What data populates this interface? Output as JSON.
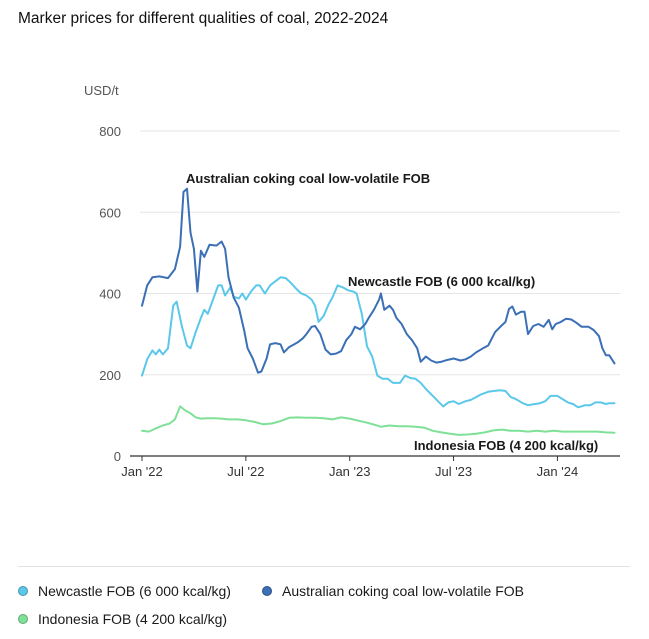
{
  "title": "Marker prices for different qualities of coal, 2022-2024",
  "colors": {
    "newcastle": "#5bc8ea",
    "australian": "#3b6fb6",
    "indonesia": "#7fe098",
    "grid": "#e5e5e5",
    "axis": "#333333",
    "tick_text": "#555555"
  },
  "chart_data": {
    "type": "line",
    "ylabel": "USD/t",
    "ylim": [
      0,
      800
    ],
    "y_ticks": [
      0,
      200,
      400,
      600,
      800
    ],
    "y_tick_labels": [
      "0",
      "200",
      "400",
      "600",
      "800"
    ],
    "x_ticks": [
      0,
      6,
      12,
      18,
      24
    ],
    "x_tick_labels": [
      "Jan '22",
      "Jul '22",
      "Jan '23",
      "Jul '23",
      "Jan '24"
    ],
    "x_unit": "months since Jan 2022",
    "xlim": [
      0,
      27.5
    ],
    "grid": true,
    "legend_position": "bottom",
    "series": [
      {
        "name": "Australian coking coal low-volatile FOB",
        "key": "australian",
        "label": "Australian coking coal low-volatile FOB",
        "points": [
          [
            0.0,
            370
          ],
          [
            0.3,
            420
          ],
          [
            0.6,
            440
          ],
          [
            1.0,
            442
          ],
          [
            1.5,
            438
          ],
          [
            1.9,
            460
          ],
          [
            2.2,
            515
          ],
          [
            2.4,
            650
          ],
          [
            2.6,
            658
          ],
          [
            2.8,
            550
          ],
          [
            3.0,
            510
          ],
          [
            3.2,
            405
          ],
          [
            3.4,
            505
          ],
          [
            3.6,
            490
          ],
          [
            3.9,
            520
          ],
          [
            4.3,
            518
          ],
          [
            4.6,
            528
          ],
          [
            4.8,
            510
          ],
          [
            5.0,
            440
          ],
          [
            5.3,
            390
          ],
          [
            5.6,
            365
          ],
          [
            5.9,
            310
          ],
          [
            6.1,
            265
          ],
          [
            6.4,
            240
          ],
          [
            6.7,
            205
          ],
          [
            6.9,
            208
          ],
          [
            7.2,
            240
          ],
          [
            7.4,
            275
          ],
          [
            7.7,
            278
          ],
          [
            8.0,
            275
          ],
          [
            8.2,
            255
          ],
          [
            8.5,
            268
          ],
          [
            8.8,
            275
          ],
          [
            9.0,
            280
          ],
          [
            9.3,
            290
          ],
          [
            9.5,
            300
          ],
          [
            9.8,
            318
          ],
          [
            10.0,
            320
          ],
          [
            10.3,
            300
          ],
          [
            10.6,
            262
          ],
          [
            10.9,
            250
          ],
          [
            11.2,
            252
          ],
          [
            11.5,
            258
          ],
          [
            11.8,
            285
          ],
          [
            12.1,
            300
          ],
          [
            12.3,
            318
          ],
          [
            12.6,
            312
          ],
          [
            12.9,
            325
          ],
          [
            13.1,
            340
          ],
          [
            13.4,
            360
          ],
          [
            13.7,
            385
          ],
          [
            13.8,
            400
          ],
          [
            14.0,
            360
          ],
          [
            14.3,
            370
          ],
          [
            14.5,
            360
          ],
          [
            14.7,
            340
          ],
          [
            15.0,
            325
          ],
          [
            15.3,
            300
          ],
          [
            15.6,
            285
          ],
          [
            15.9,
            265
          ],
          [
            16.1,
            232
          ],
          [
            16.4,
            245
          ],
          [
            16.7,
            235
          ],
          [
            17.0,
            230
          ],
          [
            17.3,
            232
          ],
          [
            17.6,
            236
          ],
          [
            18.0,
            240
          ],
          [
            18.4,
            235
          ],
          [
            18.7,
            238
          ],
          [
            19.0,
            245
          ],
          [
            19.3,
            255
          ],
          [
            19.7,
            265
          ],
          [
            20.0,
            272
          ],
          [
            20.4,
            305
          ],
          [
            20.7,
            318
          ],
          [
            21.0,
            330
          ],
          [
            21.2,
            362
          ],
          [
            21.4,
            368
          ],
          [
            21.6,
            348
          ],
          [
            21.9,
            355
          ],
          [
            22.1,
            355
          ],
          [
            22.3,
            300
          ],
          [
            22.6,
            320
          ],
          [
            22.9,
            325
          ],
          [
            23.2,
            318
          ],
          [
            23.5,
            335
          ],
          [
            23.7,
            312
          ],
          [
            23.9,
            325
          ],
          [
            24.2,
            330
          ],
          [
            24.5,
            338
          ],
          [
            24.8,
            336
          ],
          [
            25.1,
            328
          ],
          [
            25.4,
            318
          ],
          [
            25.8,
            318
          ],
          [
            26.1,
            310
          ],
          [
            26.4,
            295
          ],
          [
            26.6,
            265
          ],
          [
            26.8,
            248
          ],
          [
            27.0,
            248
          ],
          [
            27.3,
            228
          ]
        ]
      },
      {
        "name": "Newcastle FOB (6 000 kcal/kg)",
        "key": "newcastle",
        "label": "Newcastle FOB (6 000 kcal/kg)",
        "points": [
          [
            0.0,
            198
          ],
          [
            0.3,
            238
          ],
          [
            0.6,
            260
          ],
          [
            0.8,
            250
          ],
          [
            1.0,
            262
          ],
          [
            1.2,
            250
          ],
          [
            1.5,
            265
          ],
          [
            1.8,
            370
          ],
          [
            2.0,
            380
          ],
          [
            2.3,
            320
          ],
          [
            2.6,
            272
          ],
          [
            2.8,
            265
          ],
          [
            3.1,
            305
          ],
          [
            3.4,
            340
          ],
          [
            3.6,
            360
          ],
          [
            3.8,
            350
          ],
          [
            4.1,
            385
          ],
          [
            4.4,
            420
          ],
          [
            4.6,
            420
          ],
          [
            4.8,
            395
          ],
          [
            5.1,
            415
          ],
          [
            5.3,
            392
          ],
          [
            5.6,
            388
          ],
          [
            5.8,
            400
          ],
          [
            6.0,
            385
          ],
          [
            6.3,
            405
          ],
          [
            6.6,
            420
          ],
          [
            6.8,
            420
          ],
          [
            7.1,
            400
          ],
          [
            7.4,
            420
          ],
          [
            7.7,
            430
          ],
          [
            8.0,
            440
          ],
          [
            8.3,
            438
          ],
          [
            8.6,
            426
          ],
          [
            8.9,
            412
          ],
          [
            9.2,
            400
          ],
          [
            9.5,
            395
          ],
          [
            9.8,
            385
          ],
          [
            10.0,
            370
          ],
          [
            10.2,
            330
          ],
          [
            10.5,
            345
          ],
          [
            10.8,
            375
          ],
          [
            11.0,
            390
          ],
          [
            11.3,
            420
          ],
          [
            11.6,
            415
          ],
          [
            11.9,
            408
          ],
          [
            12.2,
            405
          ],
          [
            12.4,
            400
          ],
          [
            12.7,
            350
          ],
          [
            13.0,
            270
          ],
          [
            13.3,
            245
          ],
          [
            13.6,
            198
          ],
          [
            13.9,
            190
          ],
          [
            14.2,
            190
          ],
          [
            14.5,
            180
          ],
          [
            14.9,
            180
          ],
          [
            15.2,
            198
          ],
          [
            15.5,
            192
          ],
          [
            15.8,
            190
          ],
          [
            16.1,
            180
          ],
          [
            16.4,
            165
          ],
          [
            16.8,
            148
          ],
          [
            17.1,
            135
          ],
          [
            17.4,
            122
          ],
          [
            17.7,
            132
          ],
          [
            18.0,
            135
          ],
          [
            18.3,
            128
          ],
          [
            18.7,
            135
          ],
          [
            19.0,
            138
          ],
          [
            19.3,
            145
          ],
          [
            19.6,
            152
          ],
          [
            20.0,
            158
          ],
          [
            20.3,
            160
          ],
          [
            20.7,
            162
          ],
          [
            21.0,
            160
          ],
          [
            21.3,
            145
          ],
          [
            21.6,
            140
          ],
          [
            22.0,
            130
          ],
          [
            22.3,
            125
          ],
          [
            22.7,
            128
          ],
          [
            23.0,
            130
          ],
          [
            23.3,
            135
          ],
          [
            23.6,
            148
          ],
          [
            24.0,
            148
          ],
          [
            24.3,
            140
          ],
          [
            24.6,
            132
          ],
          [
            24.9,
            128
          ],
          [
            25.2,
            120
          ],
          [
            25.6,
            125
          ],
          [
            25.9,
            125
          ],
          [
            26.2,
            132
          ],
          [
            26.5,
            132
          ],
          [
            26.8,
            128
          ],
          [
            27.0,
            130
          ],
          [
            27.3,
            130
          ]
        ]
      },
      {
        "name": "Indonesia FOB (4 200 kcal/kg)",
        "key": "indonesia",
        "label": "Indonesia FOB (4 200 kcal/kg)",
        "points": [
          [
            0.0,
            62
          ],
          [
            0.4,
            60
          ],
          [
            0.8,
            68
          ],
          [
            1.2,
            75
          ],
          [
            1.6,
            80
          ],
          [
            1.9,
            90
          ],
          [
            2.2,
            122
          ],
          [
            2.5,
            112
          ],
          [
            2.8,
            105
          ],
          [
            3.1,
            95
          ],
          [
            3.4,
            92
          ],
          [
            3.8,
            93
          ],
          [
            4.2,
            93
          ],
          [
            4.6,
            92
          ],
          [
            5.0,
            90
          ],
          [
            5.5,
            90
          ],
          [
            6.0,
            88
          ],
          [
            6.5,
            84
          ],
          [
            7.0,
            78
          ],
          [
            7.5,
            80
          ],
          [
            8.0,
            86
          ],
          [
            8.5,
            94
          ],
          [
            9.0,
            95
          ],
          [
            9.5,
            94
          ],
          [
            10.0,
            94
          ],
          [
            10.5,
            93
          ],
          [
            11.0,
            90
          ],
          [
            11.5,
            95
          ],
          [
            12.0,
            92
          ],
          [
            12.5,
            87
          ],
          [
            13.0,
            82
          ],
          [
            13.5,
            76
          ],
          [
            13.8,
            72
          ],
          [
            14.3,
            75
          ],
          [
            14.8,
            73
          ],
          [
            15.3,
            73
          ],
          [
            15.8,
            72
          ],
          [
            16.3,
            70
          ],
          [
            16.8,
            62
          ],
          [
            17.3,
            58
          ],
          [
            17.8,
            55
          ],
          [
            18.3,
            52
          ],
          [
            18.8,
            53
          ],
          [
            19.3,
            55
          ],
          [
            19.8,
            58
          ],
          [
            20.3,
            63
          ],
          [
            20.8,
            65
          ],
          [
            21.3,
            62
          ],
          [
            21.8,
            62
          ],
          [
            22.3,
            60
          ],
          [
            22.8,
            62
          ],
          [
            23.3,
            60
          ],
          [
            23.8,
            62
          ],
          [
            24.3,
            60
          ],
          [
            24.8,
            60
          ],
          [
            25.3,
            60
          ],
          [
            25.8,
            60
          ],
          [
            26.3,
            60
          ],
          [
            26.8,
            58
          ],
          [
            27.3,
            57
          ]
        ]
      }
    ]
  },
  "legend": {
    "items": [
      {
        "label": "Newcastle FOB (6 000 kcal/kg)",
        "key": "newcastle"
      },
      {
        "label": "Australian coking coal low-volatile FOB",
        "key": "australian"
      },
      {
        "label": "Indonesia FOB (4 200 kcal/kg)",
        "key": "indonesia"
      }
    ]
  }
}
